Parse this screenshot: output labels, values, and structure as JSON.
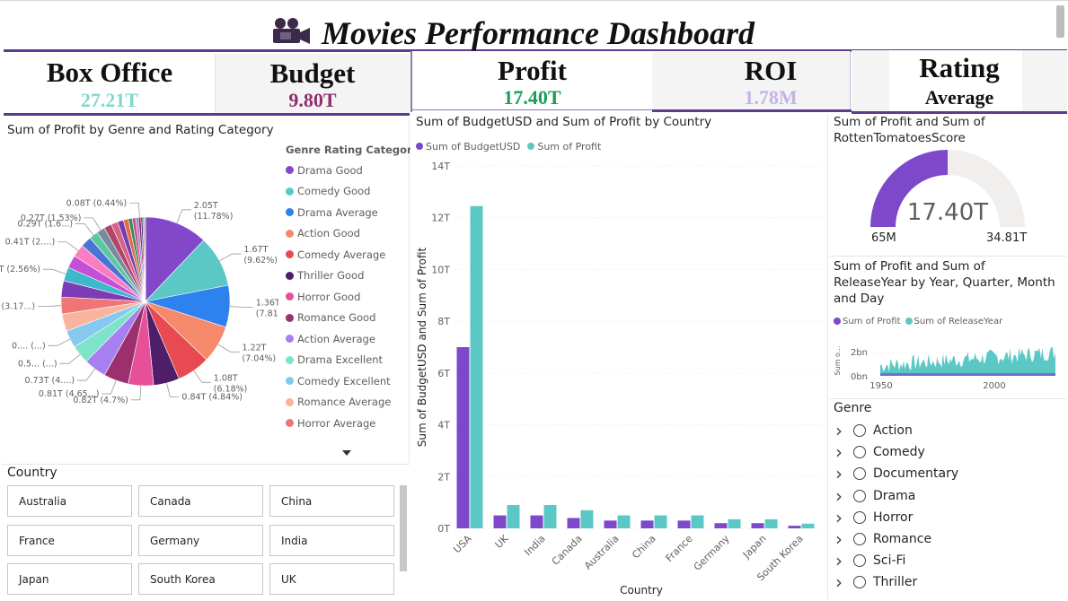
{
  "header": {
    "title": "Movies Performance Dashboard",
    "icon": "film-camera-icon"
  },
  "cards": {
    "box_office": {
      "label": "Box Office",
      "value": "27.21T",
      "color": "#7fd8d2"
    },
    "budget": {
      "label": "Budget",
      "value": "9.80T",
      "color": "#8e2f6e"
    },
    "profit": {
      "label": "Profit",
      "value": "17.40T",
      "color": "#1a9d5a"
    },
    "roi": {
      "label": "ROI",
      "value": "1.78M",
      "color": "#c7b2e6"
    },
    "rating": {
      "label": "Rating",
      "sublabel": "Average"
    }
  },
  "pie_visual": {
    "title": "Sum of Profit by Genre and Rating Category",
    "legend_title": "Genre Rating Category",
    "legend_items": [
      {
        "label": "Drama Good",
        "color": "#8348c9"
      },
      {
        "label": "Comedy Good",
        "color": "#5cc8c5"
      },
      {
        "label": "Drama Average",
        "color": "#2e82ef"
      },
      {
        "label": "Action Good",
        "color": "#f6896a"
      },
      {
        "label": "Comedy Average",
        "color": "#e84a52"
      },
      {
        "label": "Thriller Good",
        "color": "#4e1e6a"
      },
      {
        "label": "Horror Good",
        "color": "#e74f98"
      },
      {
        "label": "Romance Good",
        "color": "#9c2f6e"
      },
      {
        "label": "Action Average",
        "color": "#a87ff0"
      },
      {
        "label": "Drama Excellent",
        "color": "#7de3cb"
      },
      {
        "label": "Comedy Excellent",
        "color": "#86c8ee"
      },
      {
        "label": "Romance Average",
        "color": "#f9b49e"
      },
      {
        "label": "Horror Average",
        "color": "#f07575"
      }
    ],
    "more_icon": "caret-down-icon"
  },
  "bar_visual": {
    "title": "Sum of BudgetUSD and Sum of Profit by Country",
    "legend": [
      {
        "label": "Sum of BudgetUSD",
        "color": "#7d48c9"
      },
      {
        "label": "Sum of Profit",
        "color": "#5cc8c5"
      }
    ],
    "ylabel": "Sum of BudgetUSD and Sum of Profit",
    "xlabel": "Country",
    "yticks": [
      "0T",
      "2T",
      "4T",
      "6T",
      "8T",
      "10T",
      "12T",
      "14T"
    ]
  },
  "gauge_visual": {
    "title_line1": "Sum of Profit and Sum of",
    "title_line2": "RottenTomatoesScore",
    "value": "17.40T",
    "min": "65M",
    "max": "34.81T",
    "fill_fraction": 0.5,
    "fill_color": "#7d48c9",
    "track_color": "#f0efee"
  },
  "area_visual": {
    "title_line1": "Sum of Profit and Sum of",
    "title_line2": "ReleaseYear by Year, Quarter, Month",
    "title_line3": "and Day",
    "legend": [
      {
        "label": "Sum of Profit",
        "color": "#7d48c9"
      },
      {
        "label": "Sum of ReleaseYear",
        "color": "#5cc8c5"
      }
    ],
    "ylabel": "Sum o...",
    "yticks": [
      "0bn",
      "2bn"
    ],
    "xticks": [
      "1950",
      "2000"
    ]
  },
  "country_slicer": {
    "title": "Country",
    "items": [
      "Australia",
      "Canada",
      "China",
      "France",
      "Germany",
      "India",
      "Japan",
      "South Korea",
      "UK"
    ]
  },
  "genre_slicer": {
    "title": "Genre",
    "items": [
      "Action",
      "Comedy",
      "Documentary",
      "Drama",
      "Horror",
      "Romance",
      "Sci-Fi",
      "Thriller"
    ]
  },
  "chart_data": [
    {
      "type": "pie",
      "title": "Sum of Profit by Genre and Rating Category",
      "slices": [
        {
          "label": "Drama Good",
          "value": 2.05,
          "display": "2.05T (11.78%)",
          "color": "#8348c9"
        },
        {
          "label": "Comedy Good",
          "value": 1.67,
          "display": "1.67T (9.62%)",
          "color": "#5cc8c5"
        },
        {
          "label": "Drama Average",
          "value": 1.36,
          "display": "1.36T (7.81%)",
          "color": "#2e82ef"
        },
        {
          "label": "Action Good",
          "value": 1.22,
          "display": "1.22T (7.04%)",
          "color": "#f6896a"
        },
        {
          "label": "Comedy Average",
          "value": 1.08,
          "display": "1.08T (6.18%)",
          "color": "#e84a52"
        },
        {
          "label": "Thriller Good",
          "value": 0.84,
          "display": "0.84T (4.84%)",
          "color": "#4e1e6a"
        },
        {
          "label": "Horror Good",
          "value": 0.82,
          "display": "0.82T (4.7%)",
          "color": "#e74f98"
        },
        {
          "label": "Romance Good",
          "value": 0.81,
          "display": "0.81T (4.65...)",
          "color": "#9c2f6e"
        },
        {
          "label": "Action Average",
          "value": 0.73,
          "display": "0.73T (4....)",
          "color": "#a87ff0"
        },
        {
          "label": "Drama Excellent",
          "value": 0.6,
          "display": "0.5... (...)",
          "color": "#7de3cb"
        },
        {
          "label": "Comedy Excellent",
          "value": 0.57,
          "display": "0.... (...)",
          "color": "#86c8ee"
        },
        {
          "label": "Romance Average",
          "value": 0.56,
          "display": "",
          "color": "#f9b49e"
        },
        {
          "label": "Horror Average",
          "value": 0.55,
          "display": "0.55T (3.17...)",
          "color": "#f07575"
        },
        {
          "label": "",
          "value": 0.53,
          "display": "",
          "color": "#7d3bb5"
        },
        {
          "label": "",
          "value": 0.45,
          "display": "0.45T (2.56%)",
          "color": "#3fb8c9"
        },
        {
          "label": "",
          "value": 0.42,
          "display": "",
          "color": "#c44fd8"
        },
        {
          "label": "",
          "value": 0.41,
          "display": "0.41T (2....)",
          "color": "#fb7cc0"
        },
        {
          "label": "",
          "value": 0.35,
          "display": "",
          "color": "#4a73d6"
        },
        {
          "label": "",
          "value": 0.29,
          "display": "0.29T (1.6...)",
          "color": "#5cc8a0"
        },
        {
          "label": "",
          "value": 0.27,
          "display": "0.27T (1.53%)",
          "color": "#7a8aa0"
        },
        {
          "label": "",
          "value": 0.25,
          "display": "",
          "color": "#b0476a"
        },
        {
          "label": "",
          "value": 0.22,
          "display": "",
          "color": "#d9628a"
        },
        {
          "label": "",
          "value": 0.19,
          "display": "",
          "color": "#6e3fb0"
        },
        {
          "label": "",
          "value": 0.16,
          "display": "",
          "color": "#e66a4a"
        },
        {
          "label": "",
          "value": 0.13,
          "display": "",
          "color": "#3a8d5c"
        },
        {
          "label": "",
          "value": 0.11,
          "display": "",
          "color": "#d4498f"
        },
        {
          "label": "",
          "value": 0.09,
          "display": "",
          "color": "#9a7ed6"
        },
        {
          "label": "",
          "value": 0.08,
          "display": "0.08T (0.44%)",
          "color": "#8f2f5a"
        },
        {
          "label": "",
          "value": 0.06,
          "display": "",
          "color": "#3f3f7f"
        },
        {
          "label": "",
          "value": 0.05,
          "display": "",
          "color": "#e25c5c"
        },
        {
          "label": "",
          "value": 0.04,
          "display": "",
          "color": "#46a1cf"
        }
      ]
    },
    {
      "type": "bar",
      "title": "Sum of BudgetUSD and Sum of Profit by Country",
      "categories": [
        "USA",
        "UK",
        "India",
        "Canada",
        "Australia",
        "China",
        "France",
        "Germany",
        "Japan",
        "South Korea"
      ],
      "series": [
        {
          "name": "Sum of BudgetUSD",
          "color": "#7d48c9",
          "values": [
            7.0,
            0.5,
            0.5,
            0.4,
            0.3,
            0.3,
            0.3,
            0.2,
            0.2,
            0.1
          ]
        },
        {
          "name": "Sum of Profit",
          "color": "#5cc8c5",
          "values": [
            12.45,
            0.9,
            0.9,
            0.7,
            0.5,
            0.5,
            0.5,
            0.35,
            0.35,
            0.18
          ]
        }
      ],
      "xlabel": "Country",
      "ylabel": "Sum of BudgetUSD and Sum of Profit",
      "ylim": [
        0,
        14
      ],
      "yunit": "T"
    },
    {
      "type": "area",
      "title": "Sum of Profit and Sum of ReleaseYear by Year, Quarter, Month and Day",
      "x_range": [
        1950,
        2025
      ],
      "ylim": [
        0,
        3
      ],
      "yunit": "bn",
      "series": [
        {
          "name": "Sum of Profit",
          "color": "#7d48c9",
          "typical": 0.1
        },
        {
          "name": "Sum of ReleaseYear",
          "color": "#5cc8c5",
          "range": [
            0.5,
            2.7
          ]
        }
      ]
    }
  ]
}
